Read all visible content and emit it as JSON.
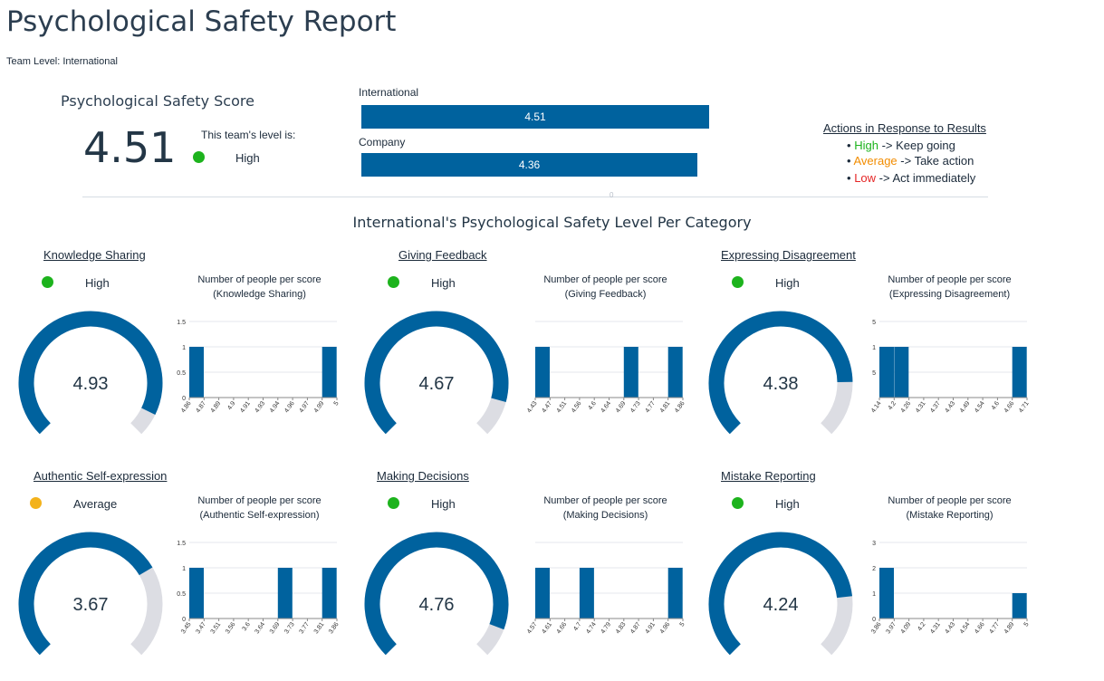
{
  "title": "Psychological Safety Report",
  "team_level": "Team Level: International",
  "score": {
    "title": "Psychological Safety Score",
    "value": "4.51",
    "level_label": "This team's level is:",
    "level": "High",
    "level_color": "#1db31d"
  },
  "comparison": [
    {
      "label": "International",
      "value": 4.51
    },
    {
      "label": "Company",
      "value": 4.36
    }
  ],
  "actions": {
    "title": "Actions in Response to Results",
    "items": [
      {
        "bullet": "•",
        "level": "High",
        "color": "#1db31d",
        "text": "-> Keep going"
      },
      {
        "bullet": "•",
        "level": "Average",
        "color": "#f28c00",
        "text": "-> Take action"
      },
      {
        "bullet": "•",
        "level": "Low",
        "color": "#e52626",
        "text": "-> Act immediately"
      }
    ]
  },
  "divider_marker": "0",
  "section_title": "International's Psychological Safety Level Per Category",
  "colors": {
    "bar": "#00629e",
    "gauge_track": "#dcdde3",
    "high": "#1db31d",
    "average": "#f3b21b"
  },
  "categories": [
    {
      "name": "Knowledge Sharing",
      "level": "High",
      "level_color": "#1db31d",
      "score": "4.93",
      "gauge_fraction": 0.93,
      "hist_title": "Number of people per score",
      "hist_subtitle": "(Knowledge Sharing)",
      "chart_data": {
        "type": "bar",
        "categories": [
          "4.86",
          "4.87",
          "4.89",
          "4.9",
          "4.91",
          "4.93",
          "4.94",
          "4.96",
          "4.97",
          "4.99",
          "5"
        ],
        "values": [
          1,
          0,
          0,
          0,
          0,
          0,
          0,
          0,
          0,
          1,
          0
        ],
        "y_ticks": [
          "0",
          "0.5",
          "1",
          "1.5"
        ],
        "ylim": [
          0,
          1.5
        ]
      }
    },
    {
      "name": "Giving Feedback",
      "level": "High",
      "level_color": "#1db31d",
      "score": "4.67",
      "gauge_fraction": 0.89,
      "hist_title": "Number of people per score",
      "hist_subtitle": "(Giving Feedback)",
      "chart_data": {
        "type": "bar",
        "categories": [
          "4.43",
          "4.47",
          "4.51",
          "4.56",
          "4.6",
          "4.64",
          "4.69",
          "4.73",
          "4.77",
          "4.81",
          "4.86"
        ],
        "values": [
          1,
          0,
          0,
          0,
          0,
          0,
          1,
          0,
          0,
          1,
          0
        ],
        "y_ticks": [
          "",
          "",
          "",
          ""
        ],
        "ylim": [
          0,
          1.5
        ]
      }
    },
    {
      "name": "Expressing Disagreement",
      "level": "High",
      "level_color": "#1db31d",
      "score": "4.38",
      "gauge_fraction": 0.83,
      "hist_title": "Number of people per score",
      "hist_subtitle": "(Expressing Disagreement)",
      "chart_data": {
        "type": "bar",
        "categories": [
          "4.14",
          "4.2",
          "4.26",
          "4.31",
          "4.37",
          "4.43",
          "4.49",
          "4.54",
          "4.6",
          "4.66",
          "4.71"
        ],
        "values": [
          1,
          1,
          0,
          0,
          0,
          0,
          0,
          0,
          0,
          1,
          0
        ],
        "y_ticks": [
          "",
          "5",
          "1",
          "5"
        ],
        "ylim": [
          0,
          1.5
        ]
      }
    },
    {
      "name": "Authentic Self-expression",
      "level": "Average",
      "level_color": "#f3b21b",
      "score": "3.67",
      "gauge_fraction": 0.72,
      "hist_title": "Number of people per score",
      "hist_subtitle": "(Authentic Self-expression)",
      "chart_data": {
        "type": "bar",
        "categories": [
          "3.45",
          "3.47",
          "3.51",
          "3.56",
          "3.6",
          "3.64",
          "3.69",
          "3.73",
          "3.77",
          "3.81",
          "3.86"
        ],
        "values": [
          1,
          0,
          0,
          0,
          0,
          0,
          1,
          0,
          0,
          1,
          0
        ],
        "y_ticks": [
          "0",
          "0.5",
          "1",
          "1.5"
        ],
        "ylim": [
          0,
          1.5
        ]
      }
    },
    {
      "name": "Making Decisions",
      "level": "High",
      "level_color": "#1db31d",
      "score": "4.76",
      "gauge_fraction": 0.91,
      "hist_title": "Number of people per score",
      "hist_subtitle": "(Making Decisions)",
      "chart_data": {
        "type": "bar",
        "categories": [
          "4.57",
          "4.61",
          "4.66",
          "4.7",
          "4.74",
          "4.79",
          "4.83",
          "4.87",
          "4.91",
          "4.96",
          "5"
        ],
        "values": [
          1,
          0,
          0,
          1,
          0,
          0,
          0,
          0,
          0,
          1,
          0
        ],
        "y_ticks": [
          "",
          "",
          "",
          ""
        ],
        "ylim": [
          0,
          1.5
        ]
      }
    },
    {
      "name": "Mistake Reporting",
      "level": "High",
      "level_color": "#1db31d",
      "score": "4.24",
      "gauge_fraction": 0.81,
      "hist_title": "Number of people per score",
      "hist_subtitle": "(Mistake Reporting)",
      "chart_data": {
        "type": "bar",
        "categories": [
          "3.86",
          "3.97",
          "4.09",
          "4.2",
          "4.31",
          "4.43",
          "4.54",
          "4.66",
          "4.77",
          "4.89",
          "5"
        ],
        "values": [
          2,
          0,
          0,
          0,
          0,
          0,
          0,
          0,
          0,
          1,
          0
        ],
        "y_ticks": [
          "0",
          "1",
          "2",
          "3"
        ],
        "ylim": [
          0,
          3
        ]
      }
    }
  ]
}
